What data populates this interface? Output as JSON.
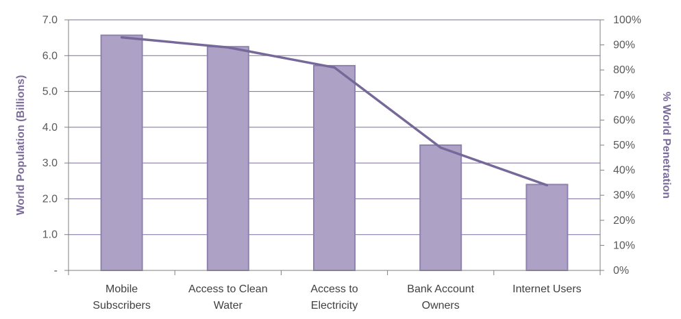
{
  "chart_data": {
    "type": "bar",
    "categories": [
      [
        "Mobile",
        "Subscribers"
      ],
      [
        "Access to Clean",
        "Water"
      ],
      [
        "Access to",
        "Electricity"
      ],
      [
        "Bank Account",
        "Owners"
      ],
      "Internet Users"
    ],
    "series": [
      {
        "type": "bar",
        "axis": "left",
        "values": [
          6.57,
          6.25,
          5.72,
          3.5,
          2.4
        ]
      },
      {
        "type": "line",
        "axis": "right",
        "values": [
          93,
          89,
          81,
          49,
          34
        ]
      }
    ],
    "ylabel": "World Population (Billions)",
    "y2label": "% World Penetration",
    "ylim": [
      0,
      7
    ],
    "y2lim": [
      0,
      100
    ],
    "yticks": [
      "-",
      "1.0",
      "2.0",
      "3.0",
      "4.0",
      "5.0",
      "6.0",
      "7.0"
    ],
    "y2ticks": [
      "0%",
      "10%",
      "20%",
      "30%",
      "40%",
      "50%",
      "60%",
      "70%",
      "80%",
      "90%",
      "100%"
    ],
    "grid": true,
    "colors": {
      "bar_fill": "#ada2c6",
      "bar_stroke": "#8f81b0",
      "line": "#76699a",
      "grid": "#7a6b9a",
      "axis": "#7f7f7f"
    }
  }
}
